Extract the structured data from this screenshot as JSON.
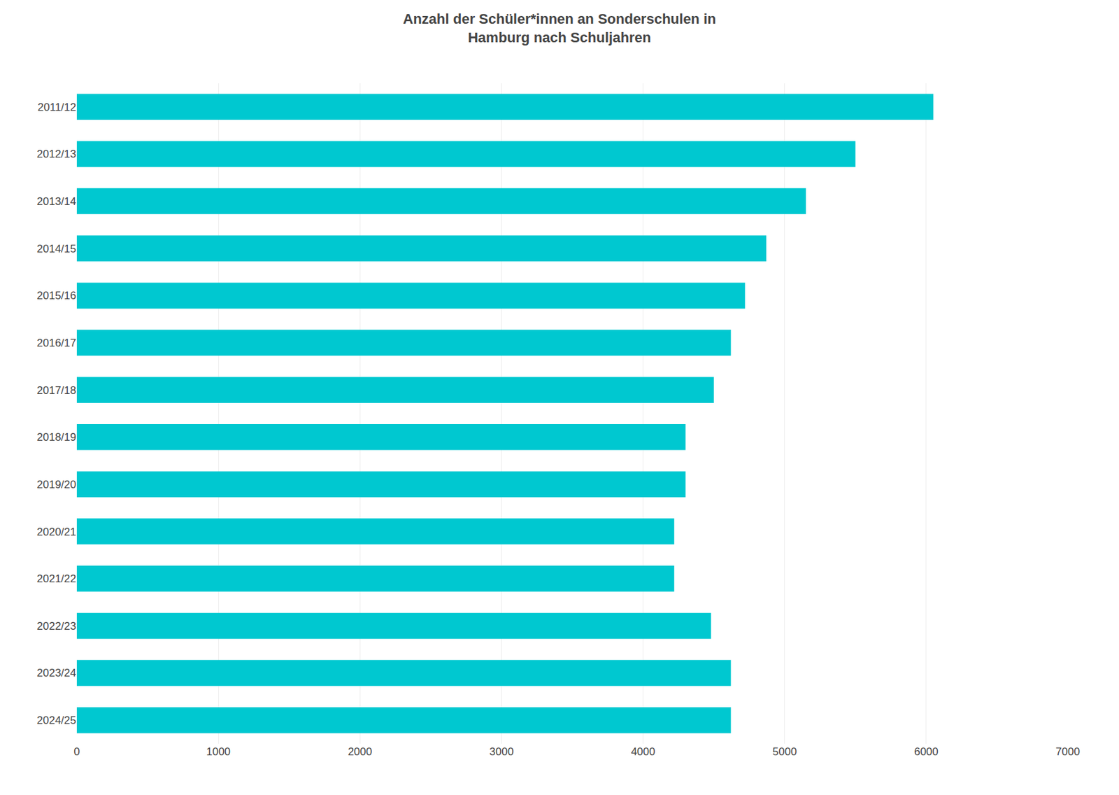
{
  "chart_data": {
    "type": "bar",
    "orientation": "horizontal",
    "title": "Anzahl der Schüler*innen an Sonderschulen in\nHamburg nach Schuljahren",
    "categories": [
      "2011/12",
      "2012/13",
      "2013/14",
      "2014/15",
      "2015/16",
      "2016/17",
      "2017/18",
      "2018/19",
      "2019/20",
      "2020/21",
      "2021/22",
      "2022/23",
      "2023/24",
      "2024/25"
    ],
    "values": [
      6050,
      5500,
      5150,
      4870,
      4720,
      4620,
      4500,
      4300,
      4300,
      4220,
      4220,
      4480,
      4620,
      4620
    ],
    "color": "#00C8D0",
    "xlim": [
      0,
      7000
    ],
    "xticks": [
      0,
      1000,
      2000,
      3000,
      4000,
      5000,
      6000,
      7000
    ],
    "grid": true
  }
}
